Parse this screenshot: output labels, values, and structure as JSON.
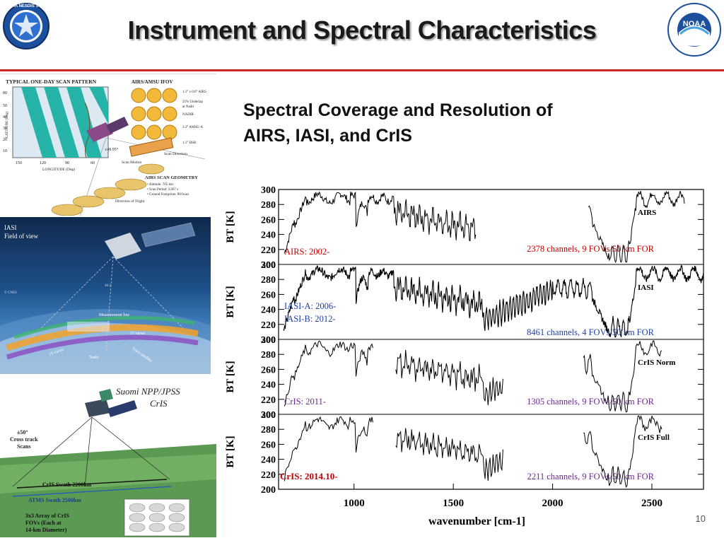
{
  "header": {
    "title": "Instrument and Spectral Characteristics",
    "left_logo_text": "NOAA NESDIS STAR",
    "right_logo_text": "NOAA",
    "rule_color": "#c62828"
  },
  "subtitle": {
    "line1": "Spectral Coverage and Resolution of",
    "line2": "AIRS, IASI, and CrIS"
  },
  "left_panels": {
    "airs": {
      "scan_pattern_title": "TYPICAL ONE-DAY SCAN PATTERN",
      "y_ticks": [
        "80",
        "50",
        "40",
        "30",
        "20",
        "10"
      ],
      "x_ticks": [
        "150",
        "120",
        "90",
        "60"
      ],
      "y_axis_label": "LATITUDE (Deg)",
      "x_axis_label": "LONGITUDE (Deg)",
      "ifov_title": "AIRS/AMSU IFOV",
      "ifov_notes": [
        "1.1° x 0.6° AIRS",
        "25% Underlap",
        "at Nadir",
        "NADIR",
        "3.3° AMSU-A",
        "1.1° HSB"
      ],
      "angle_label": "±48.95°",
      "scan_direction": "Scan Direction",
      "scan_motion": "Scan Motion",
      "geometry_title": "AIRS SCAN GEOMETRY",
      "geometry_items": [
        "• Altitude: 705 km",
        "• Scan Period: 2.667 s",
        "• Ground Footprints: 90/Scan"
      ],
      "direction_of_flight": "Direction of Flight"
    },
    "iasi": {
      "label_line1": "IASI",
      "label_line2": "Field of view",
      "copyright": "© CNES",
      "angle": "48.3",
      "measurement_line": "Measurement line",
      "views_left": "15 views",
      "views_right": "15 views",
      "nadir": "Nadir",
      "satellite_track": "Trace satellite"
    },
    "cris": {
      "title_line1": "Suomi NPP/JPSS",
      "title_line2": "CrIS",
      "cross_track_line1": "±50°",
      "cross_track_line2": "Cross track",
      "cross_track_line3": "Scans",
      "cris_swath": "CrIS Swath 2200km",
      "atms_swath": "ATMS Swath 2500km",
      "fov_caption_line1": "3x3 Array of CrIS",
      "fov_caption_line2": "FOVs (Each at",
      "fov_caption_line3": "14-km Diameter)"
    }
  },
  "chart_data": {
    "type": "line",
    "xlabel": "wavenumber [cm-1]",
    "ylabel": "BT [K]",
    "x_ticks": [
      1000,
      1500,
      2000,
      2500
    ],
    "xlim": [
      620,
      2760
    ],
    "y_ticks": [
      200,
      220,
      240,
      260,
      280,
      300
    ],
    "ylim": [
      200,
      300
    ],
    "panels": [
      {
        "series_name": "AIRS",
        "label_lines": [
          "AIRS: 2002-"
        ],
        "label_color": "#c00000",
        "info": "2378 channels, 9 FOVs/50 km FOR",
        "info_color": "#c00000",
        "x_ranges": [
          [
            650,
            1613
          ],
          [
            2181,
            2665
          ]
        ]
      },
      {
        "series_name": "IASI",
        "label_lines": [
          "IASI-A: 2006-",
          "IASI-B: 2012-"
        ],
        "label_color": "#1f3fa0",
        "info": "8461 channels, 4 FOVs/50 km FOR",
        "info_color": "#1f3fa0",
        "x_ranges": [
          [
            645,
            2760
          ]
        ]
      },
      {
        "series_name": "CrIS Norm",
        "label_lines": [
          "CrIS: 2011-"
        ],
        "label_color": "#6a2a8a",
        "info": "1305 channels, 9 FOVs/50 km FOR",
        "info_color": "#6a2a8a",
        "x_ranges": [
          [
            650,
            1095
          ],
          [
            1210,
            1750
          ],
          [
            2155,
            2550
          ]
        ]
      },
      {
        "series_name": "CrIS Full",
        "label_lines": [
          "CrIS: 2014.10-"
        ],
        "label_color": "#c00000",
        "info": "2211 channels, 9 FOVs/50 km FOR",
        "info_color": "#6a2a8a",
        "x_ranges": [
          [
            650,
            1095
          ],
          [
            1210,
            1750
          ],
          [
            2155,
            2550
          ]
        ]
      }
    ]
  },
  "page_number": "10"
}
